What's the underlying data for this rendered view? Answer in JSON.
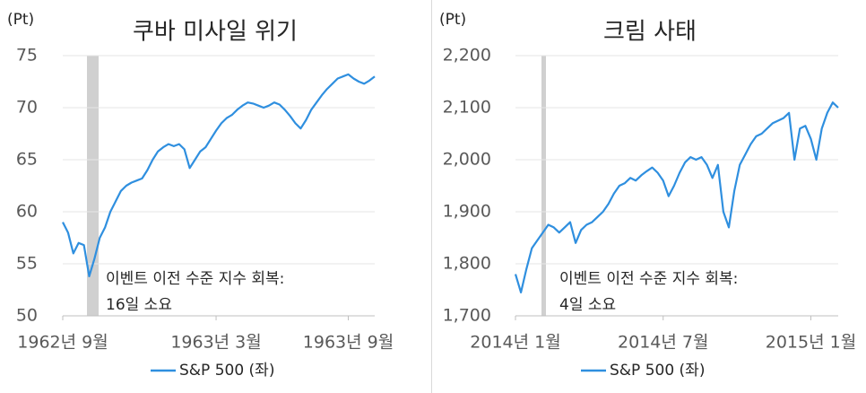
{
  "chart_data": [
    {
      "type": "line",
      "title": "쿠바 미사일 위기",
      "y_label": "(Pt)",
      "categories": [
        "1962년 9월",
        null,
        null,
        null,
        null,
        null,
        null,
        null,
        null,
        null,
        null,
        null,
        null,
        null,
        null,
        null,
        null,
        null,
        null,
        null,
        null,
        null,
        null,
        null,
        null,
        null,
        null,
        null,
        null,
        "1963년 3월",
        null,
        null,
        null,
        null,
        null,
        null,
        null,
        null,
        null,
        null,
        null,
        null,
        null,
        null,
        null,
        null,
        null,
        null,
        null,
        null,
        null,
        null,
        null,
        null,
        "1963년 9월",
        null,
        null,
        null,
        null,
        null
      ],
      "series": [
        {
          "name": "S&P 500 (좌)",
          "color": "#2f8fdf",
          "values": [
            59.0,
            58.0,
            56.0,
            57.0,
            56.8,
            53.8,
            55.5,
            57.5,
            58.5,
            60.0,
            61.0,
            62.0,
            62.5,
            62.8,
            63.0,
            63.2,
            64.0,
            65.0,
            65.8,
            66.2,
            66.5,
            66.3,
            66.5,
            66.0,
            64.2,
            65.0,
            65.8,
            66.2,
            67.0,
            67.8,
            68.5,
            69.0,
            69.3,
            69.8,
            70.2,
            70.5,
            70.4,
            70.2,
            70.0,
            70.2,
            70.5,
            70.3,
            69.8,
            69.2,
            68.5,
            68.0,
            68.8,
            69.8,
            70.5,
            71.2,
            71.8,
            72.3,
            72.8,
            73.0,
            73.2,
            72.8,
            72.5,
            72.3,
            72.6,
            73.0
          ]
        }
      ],
      "ylim": [
        50,
        75
      ],
      "yticks": [
        50,
        55,
        60,
        65,
        70,
        75
      ],
      "grid": true,
      "annotations": [
        "이벤트 이전 수준 지수 회복:",
        "16일 소요"
      ]
    },
    {
      "type": "line",
      "title": "크림 사태",
      "y_label": "(Pt)",
      "categories": [
        "2014년 1월",
        null,
        null,
        null,
        null,
        null,
        null,
        null,
        null,
        null,
        null,
        null,
        null,
        null,
        null,
        null,
        null,
        null,
        null,
        null,
        null,
        null,
        null,
        null,
        null,
        null,
        null,
        "2014년 7월",
        null,
        null,
        null,
        null,
        null,
        null,
        null,
        null,
        null,
        null,
        null,
        null,
        null,
        null,
        null,
        null,
        null,
        null,
        null,
        null,
        null,
        null,
        null,
        null,
        null,
        null,
        "2015년 1월",
        null,
        null,
        null,
        null,
        null
      ],
      "series": [
        {
          "name": "S&P 500 (좌)",
          "color": "#2f8fdf",
          "values": [
            1780,
            1745,
            1790,
            1830,
            1845,
            1860,
            1875,
            1870,
            1860,
            1870,
            1880,
            1840,
            1865,
            1875,
            1880,
            1890,
            1900,
            1915,
            1935,
            1950,
            1955,
            1965,
            1960,
            1970,
            1978,
            1985,
            1975,
            1960,
            1930,
            1950,
            1975,
            1995,
            2005,
            2000,
            2005,
            1990,
            1965,
            1990,
            1900,
            1870,
            1940,
            1990,
            2010,
            2030,
            2045,
            2050,
            2060,
            2070,
            2075,
            2080,
            2090,
            2000,
            2060,
            2065,
            2040,
            2000,
            2060,
            2090,
            2110,
            2100
          ]
        }
      ],
      "ylim": [
        1700,
        2200
      ],
      "yticks": [
        {
          "value": 1700,
          "label": "1,700"
        },
        {
          "value": 1800,
          "label": "1,800"
        },
        {
          "value": 1900,
          "label": "1,900"
        },
        {
          "value": 2000,
          "label": "2,000"
        },
        {
          "value": 2100,
          "label": "2,100"
        },
        {
          "value": 2200,
          "label": "2,200"
        }
      ],
      "grid": true,
      "annotations": [
        "이벤트 이전 수준 지수 회복:",
        "4일 소요"
      ]
    }
  ]
}
